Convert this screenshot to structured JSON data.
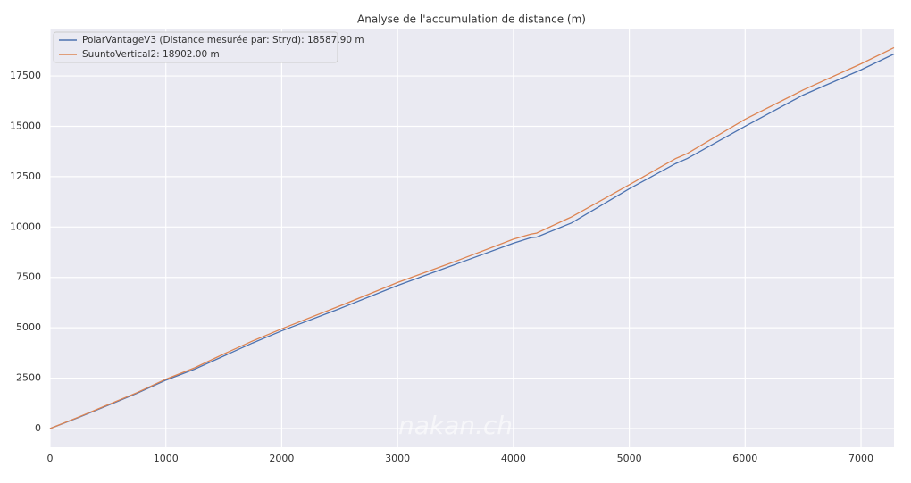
{
  "chart_data": {
    "type": "line",
    "title": "Analyse de l'accumulation de distance (m)",
    "x": [
      0,
      250,
      500,
      750,
      1000,
      1250,
      1500,
      1750,
      2000,
      2500,
      3000,
      3500,
      4000,
      4150,
      4200,
      4500,
      5000,
      5400,
      5500,
      6000,
      6500,
      7000,
      7285
    ],
    "series": [
      {
        "name": "PolarVantageV3 (Distance mesurée par: Stryd): 18587.90 m",
        "color": "#4c72b0",
        "values": [
          0,
          560,
          1150,
          1750,
          2400,
          2950,
          3600,
          4250,
          4850,
          5950,
          7100,
          8150,
          9200,
          9470,
          9500,
          10200,
          11900,
          13150,
          13400,
          15000,
          16550,
          17800,
          18587.9
        ]
      },
      {
        "name": "SuuntoVertical2: 18902.00 m",
        "color": "#dd8452",
        "values": [
          0,
          580,
          1180,
          1780,
          2450,
          3020,
          3700,
          4350,
          4950,
          6080,
          7250,
          8300,
          9400,
          9650,
          9700,
          10500,
          12100,
          13400,
          13650,
          15350,
          16800,
          18100,
          18902
        ]
      }
    ],
    "xlim": [
      0,
      7285
    ],
    "ylim": [
      -930,
      19850
    ],
    "xticks": [
      0,
      1000,
      2000,
      3000,
      4000,
      5000,
      6000,
      7000
    ],
    "yticks": [
      0,
      2500,
      5000,
      7500,
      10000,
      12500,
      15000,
      17500
    ],
    "grid": true,
    "legend": "upper left",
    "watermark": "nakan.ch"
  }
}
